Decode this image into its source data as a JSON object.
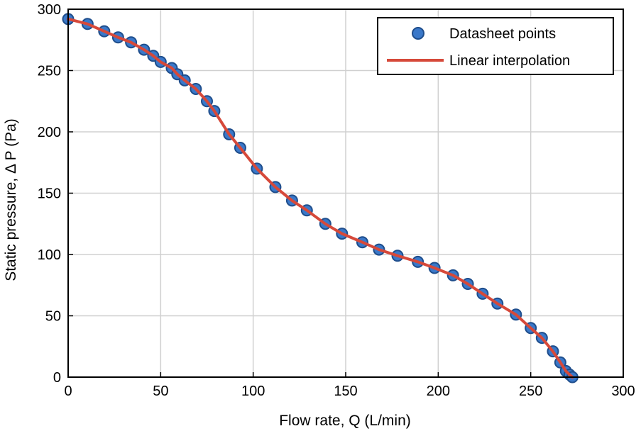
{
  "chart_data": {
    "type": "line",
    "title": "",
    "xlabel": "Flow rate, Q (L/min)",
    "ylabel": "Static pressure, Δ P (Pa)",
    "xlim": [
      0,
      300
    ],
    "ylim": [
      0,
      300
    ],
    "xticks": [
      "0",
      "50",
      "100",
      "150",
      "200",
      "250",
      "300"
    ],
    "yticks": [
      "0",
      "50",
      "100",
      "150",
      "200",
      "250",
      "300"
    ],
    "grid": true,
    "legend_position": "top-right",
    "series": [
      {
        "name": "Datasheet points",
        "kind": "scatter",
        "color": "#3a78c9",
        "edge_color": "#1f4e8c",
        "x": [
          0,
          10.5,
          19.5,
          27,
          34,
          41,
          46,
          50,
          56,
          59,
          63,
          69,
          75,
          79,
          87,
          93,
          102,
          112,
          121,
          129,
          139,
          148,
          159,
          168,
          178,
          189,
          198,
          208,
          216,
          224,
          232,
          242,
          250,
          256,
          262,
          266,
          269,
          271,
          272.5
        ],
        "y": [
          292,
          288,
          282,
          277,
          273,
          267,
          262,
          257,
          252,
          247,
          242,
          235,
          225,
          217,
          198,
          187,
          170,
          155,
          144,
          136,
          125,
          117,
          110,
          104,
          99,
          94,
          89,
          83,
          76,
          68,
          60,
          51,
          40,
          32,
          21,
          12,
          5,
          2,
          0
        ]
      },
      {
        "name": "Linear interpolation",
        "kind": "line",
        "color": "#d6493a",
        "x": [
          0,
          10.5,
          19.5,
          27,
          34,
          41,
          46,
          50,
          56,
          59,
          63,
          69,
          75,
          79,
          87,
          93,
          102,
          112,
          121,
          129,
          139,
          148,
          159,
          168,
          178,
          189,
          198,
          208,
          216,
          224,
          232,
          242,
          250,
          256,
          262,
          266,
          269,
          271,
          272.5
        ],
        "y": [
          292,
          288,
          282,
          277,
          273,
          267,
          262,
          257,
          252,
          247,
          242,
          235,
          225,
          217,
          198,
          187,
          170,
          155,
          144,
          136,
          125,
          117,
          110,
          104,
          99,
          94,
          89,
          83,
          76,
          68,
          60,
          51,
          40,
          32,
          21,
          12,
          5,
          2,
          0
        ]
      }
    ]
  }
}
